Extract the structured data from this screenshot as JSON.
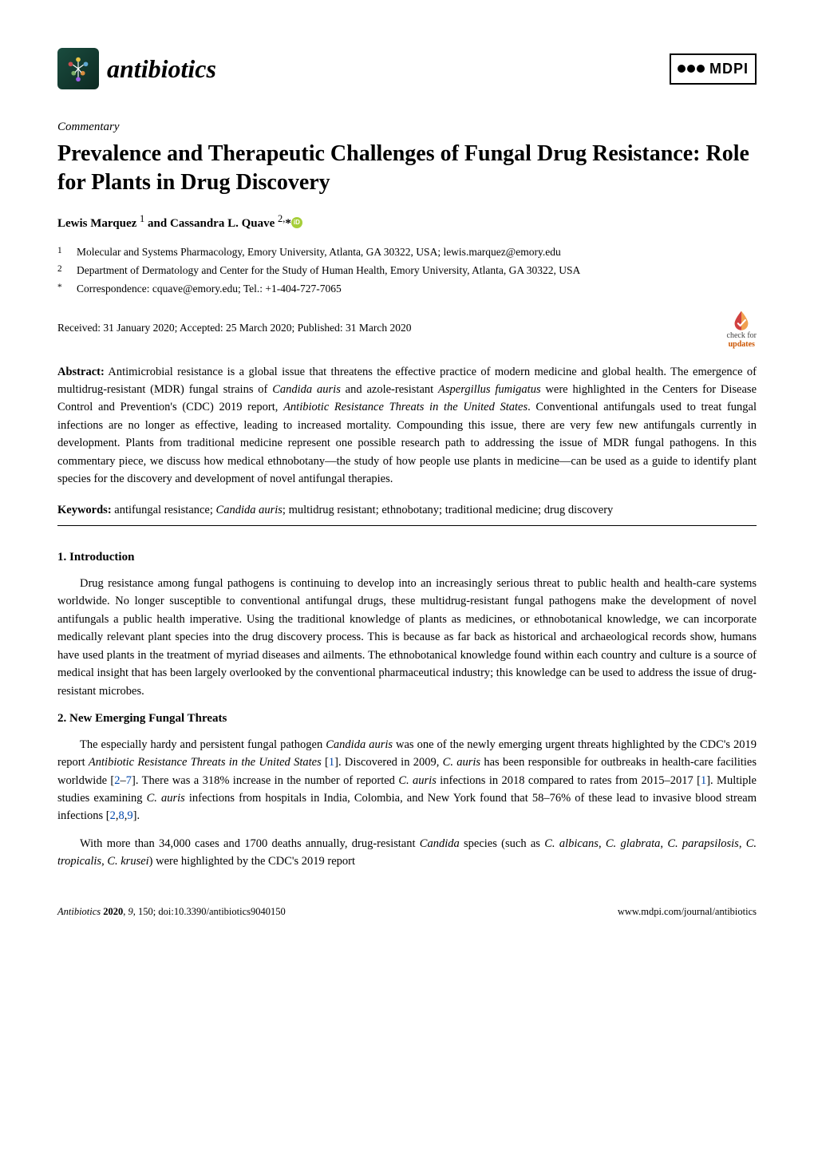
{
  "journal": {
    "name": "antibiotics",
    "publisher": "MDPI"
  },
  "article": {
    "type": "Commentary",
    "title": "Prevalence and Therapeutic Challenges of Fungal Drug Resistance: Role for Plants in Drug Discovery",
    "authors_html": "Lewis Marquez <sup>1</sup> and Cassandra L. Quave <sup>2,</sup>*",
    "affiliations": [
      {
        "num": "1",
        "text": "Molecular and Systems Pharmacology, Emory University, Atlanta, GA 30322, USA; lewis.marquez@emory.edu"
      },
      {
        "num": "2",
        "text": "Department of Dermatology and Center for the Study of Human Health, Emory University, Atlanta, GA 30322, USA"
      },
      {
        "num": "*",
        "text": "Correspondence: cquave@emory.edu; Tel.: +1-404-727-7065"
      }
    ],
    "dates": "Received: 31 January 2020; Accepted: 25 March 2020; Published: 31 March 2020",
    "check_for": "check for",
    "updates": "updates"
  },
  "abstract": {
    "label": "Abstract:",
    "text": "Antimicrobial resistance is a global issue that threatens the effective practice of modern medicine and global health. The emergence of multidrug-resistant (MDR) fungal strains of Candida auris and azole-resistant Aspergillus fumigatus were highlighted in the Centers for Disease Control and Prevention's (CDC) 2019 report, Antibiotic Resistance Threats in the United States. Conventional antifungals used to treat fungal infections are no longer as effective, leading to increased mortality. Compounding this issue, there are very few new antifungals currently in development. Plants from traditional medicine represent one possible research path to addressing the issue of MDR fungal pathogens. In this commentary piece, we discuss how medical ethnobotany—the study of how people use plants in medicine—can be used as a guide to identify plant species for the discovery and development of novel antifungal therapies."
  },
  "keywords": {
    "label": "Keywords:",
    "text": "antifungal resistance; Candida auris; multidrug resistant; ethnobotany; traditional medicine; drug discovery"
  },
  "sections": [
    {
      "heading": "1. Introduction",
      "paragraphs": [
        "Drug resistance among fungal pathogens is continuing to develop into an increasingly serious threat to public health and health-care systems worldwide. No longer susceptible to conventional antifungal drugs, these multidrug-resistant fungal pathogens make the development of novel antifungals a public health imperative. Using the traditional knowledge of plants as medicines, or ethnobotanical knowledge, we can incorporate medically relevant plant species into the drug discovery process. This is because as far back as historical and archaeological records show, humans have used plants in the treatment of myriad diseases and ailments. The ethnobotanical knowledge found within each country and culture is a source of medical insight that has been largely overlooked by the conventional pharmaceutical industry; this knowledge can be used to address the issue of drug-resistant microbes."
      ]
    },
    {
      "heading": "2. New Emerging Fungal Threats",
      "paragraphs": [
        "The especially hardy and persistent fungal pathogen <i>Candida auris</i> was one of the newly emerging urgent threats highlighted by the CDC's 2019 report <i>Antibiotic Resistance Threats in the United States</i> [<span class=\"ref\">1</span>]. Discovered in 2009, <i>C. auris</i> has been responsible for outbreaks in health-care facilities worldwide [<span class=\"ref\">2</span>–<span class=\"ref\">7</span>]. There was a 318% increase in the number of reported <i>C. auris</i> infections in 2018 compared to rates from 2015–2017 [<span class=\"ref\">1</span>]. Multiple studies examining <i>C. auris</i> infections from hospitals in India, Colombia, and New York found that 58–76% of these lead to invasive blood stream infections [<span class=\"ref\">2</span>,<span class=\"ref\">8</span>,<span class=\"ref\">9</span>].",
        "With more than 34,000 cases and 1700 deaths annually, drug-resistant <i>Candida</i> species (such as <i>C. albicans</i>, <i>C. glabrata</i>, <i>C. parapsilosis</i>, <i>C. tropicalis</i>, <i>C. krusei</i>) were highlighted by the CDC's 2019 report"
      ]
    }
  ],
  "footer": {
    "left": "Antibiotics 2020, 9, 150; doi:10.3390/antibiotics9040150",
    "right": "www.mdpi.com/journal/antibiotics"
  },
  "colors": {
    "ref_link": "#0047ab",
    "orcid_bg": "#a6ce39",
    "logo_dark": "#0d2a22",
    "updates_orange": "#cc5500"
  }
}
